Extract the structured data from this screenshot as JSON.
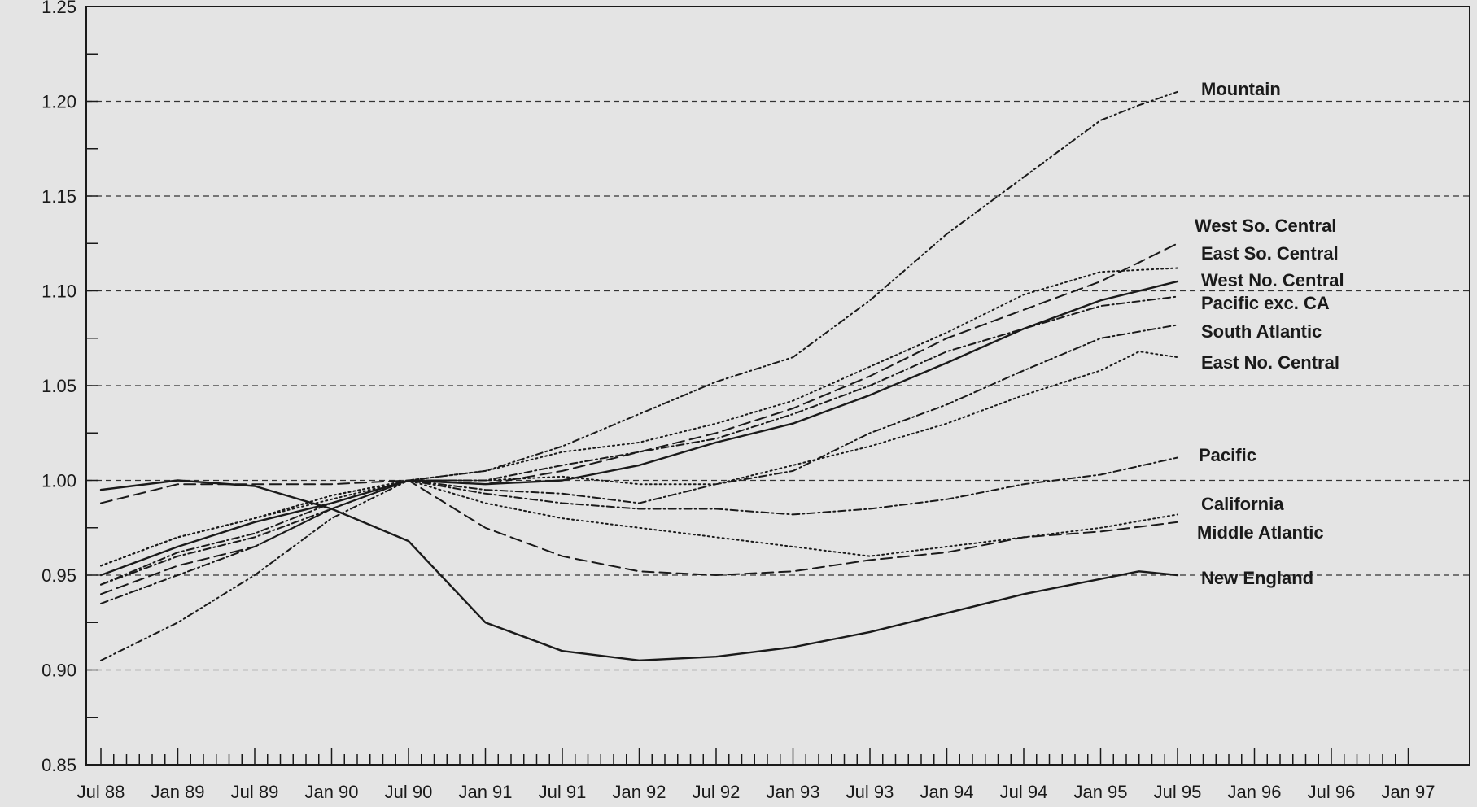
{
  "chart_data": {
    "type": "line",
    "title": "",
    "xlabel": "",
    "ylabel": "",
    "ylim": [
      0.85,
      1.25
    ],
    "y_ticks": [
      "0.85",
      "0.90",
      "0.95",
      "1.00",
      "1.05",
      "1.10",
      "1.15",
      "1.20",
      "1.25"
    ],
    "x_ticks": [
      "Jul 88",
      "Jan 89",
      "Jul 89",
      "Jan 90",
      "Jul 90",
      "Jan 91",
      "Jul 91",
      "Jan 92",
      "Jul 92",
      "Jan 93",
      "Jul 93",
      "Jan 94",
      "Jul 94",
      "Jan 95",
      "Jul 95",
      "Jan 96",
      "Jul 96",
      "Jan 97"
    ],
    "grid": "horizontal dashed",
    "legend": "inline labels at right end of each line",
    "series": [
      {
        "name": "Mountain",
        "style": "dashdot-dot",
        "x": [
          "Jul 88",
          "Jan 89",
          "Jul 89",
          "Jan 90",
          "Jul 90",
          "Jan 91",
          "Jul 91",
          "Jan 92",
          "Jul 92",
          "Jan 93",
          "Jul 93",
          "Jan 94",
          "Jul 94",
          "Jan 95",
          "Apr 95",
          "Jul 95"
        ],
        "y": [
          0.905,
          0.925,
          0.95,
          0.98,
          1.0,
          1.005,
          1.018,
          1.035,
          1.052,
          1.065,
          1.095,
          1.13,
          1.16,
          1.19,
          1.198,
          1.205
        ]
      },
      {
        "name": "West So. Central",
        "style": "dashed",
        "x": [
          "Jul 88",
          "Jan 89",
          "Jul 89",
          "Jan 90",
          "Jul 90",
          "Jan 91",
          "Jul 91",
          "Jan 92",
          "Jul 92",
          "Jan 93",
          "Jul 93",
          "Jan 94",
          "Jul 94",
          "Jan 95",
          "Jul 95"
        ],
        "y": [
          0.94,
          0.955,
          0.965,
          0.985,
          1.0,
          0.998,
          1.005,
          1.015,
          1.025,
          1.038,
          1.055,
          1.075,
          1.09,
          1.105,
          1.125
        ]
      },
      {
        "name": "East So. Central",
        "style": "dotted",
        "x": [
          "Jul 88",
          "Jan 89",
          "Jul 89",
          "Jan 90",
          "Jul 90",
          "Jan 91",
          "Jul 91",
          "Jan 92",
          "Jul 92",
          "Jan 93",
          "Jul 93",
          "Jan 94",
          "Jul 94",
          "Jan 95",
          "Jul 95"
        ],
        "y": [
          0.955,
          0.97,
          0.98,
          0.992,
          1.0,
          1.005,
          1.015,
          1.02,
          1.03,
          1.042,
          1.06,
          1.078,
          1.098,
          1.11,
          1.112
        ]
      },
      {
        "name": "West No. Central",
        "style": "solid",
        "x": [
          "Jul 88",
          "Jan 89",
          "Jul 89",
          "Jan 90",
          "Jul 90",
          "Jan 91",
          "Jul 91",
          "Jan 92",
          "Jul 92",
          "Jan 93",
          "Jul 93",
          "Jan 94",
          "Jul 94",
          "Jan 95",
          "Jul 95"
        ],
        "y": [
          0.95,
          0.965,
          0.978,
          0.988,
          1.0,
          0.998,
          1.0,
          1.008,
          1.02,
          1.03,
          1.045,
          1.062,
          1.08,
          1.095,
          1.105
        ]
      },
      {
        "name": "Pacific exc. CA",
        "style": "dashdot",
        "x": [
          "Jul 88",
          "Jan 89",
          "Jul 89",
          "Jan 90",
          "Jul 90",
          "Jan 91",
          "Jul 91",
          "Jan 92",
          "Jul 92",
          "Jan 93",
          "Jul 93",
          "Jan 94",
          "Jul 94",
          "Jan 95",
          "Jul 95"
        ],
        "y": [
          0.935,
          0.95,
          0.965,
          0.985,
          1.0,
          1.0,
          1.008,
          1.015,
          1.022,
          1.035,
          1.05,
          1.068,
          1.08,
          1.092,
          1.097
        ]
      },
      {
        "name": "South Atlantic",
        "style": "dashdot",
        "x": [
          "Jul 88",
          "Jan 89",
          "Jul 89",
          "Jan 90",
          "Jul 90",
          "Jan 91",
          "Jul 91",
          "Jan 92",
          "Jul 92",
          "Jan 93",
          "Jul 93",
          "Jan 94",
          "Jul 94",
          "Jan 95",
          "Jul 95"
        ],
        "y": [
          0.945,
          0.96,
          0.97,
          0.985,
          1.0,
          0.995,
          0.993,
          0.988,
          0.998,
          1.005,
          1.025,
          1.04,
          1.058,
          1.075,
          1.082
        ]
      },
      {
        "name": "East No. Central",
        "style": "dotted",
        "x": [
          "Jul 88",
          "Jan 89",
          "Jul 89",
          "Jan 90",
          "Jul 90",
          "Jan 91",
          "Jul 91",
          "Jan 92",
          "Jul 92",
          "Jan 93",
          "Jul 93",
          "Jan 94",
          "Jul 94",
          "Jan 95",
          "Apr 95",
          "Jul 95"
        ],
        "y": [
          0.955,
          0.97,
          0.98,
          0.99,
          1.0,
          1.0,
          1.002,
          0.998,
          0.998,
          1.008,
          1.018,
          1.03,
          1.045,
          1.058,
          1.068,
          1.065
        ]
      },
      {
        "name": "Pacific",
        "style": "dashdot",
        "x": [
          "Jul 88",
          "Jan 89",
          "Jul 89",
          "Jan 90",
          "Jul 90",
          "Jan 91",
          "Jul 91",
          "Jan 92",
          "Jul 92",
          "Jan 93",
          "Jul 93",
          "Jan 94",
          "Jul 94",
          "Jan 95",
          "Jul 95"
        ],
        "y": [
          0.945,
          0.962,
          0.972,
          0.988,
          1.0,
          0.993,
          0.988,
          0.985,
          0.985,
          0.982,
          0.985,
          0.99,
          0.998,
          1.003,
          1.012
        ]
      },
      {
        "name": "California",
        "style": "dotted",
        "x": [
          "Jul 88",
          "Jan 89",
          "Jul 89",
          "Jan 90",
          "Jul 90",
          "Jan 91",
          "Jul 91",
          "Jan 92",
          "Jul 92",
          "Jan 93",
          "Jul 93",
          "Jan 94",
          "Jul 94",
          "Jan 95",
          "Jul 95"
        ],
        "y": [
          0.955,
          0.97,
          0.98,
          0.992,
          1.0,
          0.988,
          0.98,
          0.975,
          0.97,
          0.965,
          0.96,
          0.965,
          0.97,
          0.975,
          0.982
        ]
      },
      {
        "name": "Middle Atlantic",
        "style": "dashed",
        "x": [
          "Jul 88",
          "Jan 89",
          "Jul 89",
          "Jan 90",
          "Jul 90",
          "Jan 91",
          "Jul 91",
          "Jan 92",
          "Jul 92",
          "Jan 93",
          "Jul 93",
          "Jan 94",
          "Jul 94",
          "Jan 95",
          "Jul 95"
        ],
        "y": [
          0.988,
          0.998,
          0.998,
          0.998,
          1.0,
          0.975,
          0.96,
          0.952,
          0.95,
          0.952,
          0.958,
          0.962,
          0.97,
          0.973,
          0.978
        ]
      },
      {
        "name": "New England",
        "style": "solid",
        "x": [
          "Jul 88",
          "Jan 89",
          "Jul 89",
          "Jan 90",
          "Jul 90",
          "Jan 91",
          "Jul 91",
          "Jan 92",
          "Jul 92",
          "Jan 93",
          "Jul 93",
          "Jan 94",
          "Jul 94",
          "Jan 95",
          "Apr 95",
          "Jul 95"
        ],
        "y": [
          0.995,
          1.0,
          0.997,
          0.985,
          0.968,
          0.925,
          0.91,
          0.905,
          0.907,
          0.912,
          0.92,
          0.93,
          0.94,
          0.948,
          0.952,
          0.95
        ]
      }
    ]
  }
}
